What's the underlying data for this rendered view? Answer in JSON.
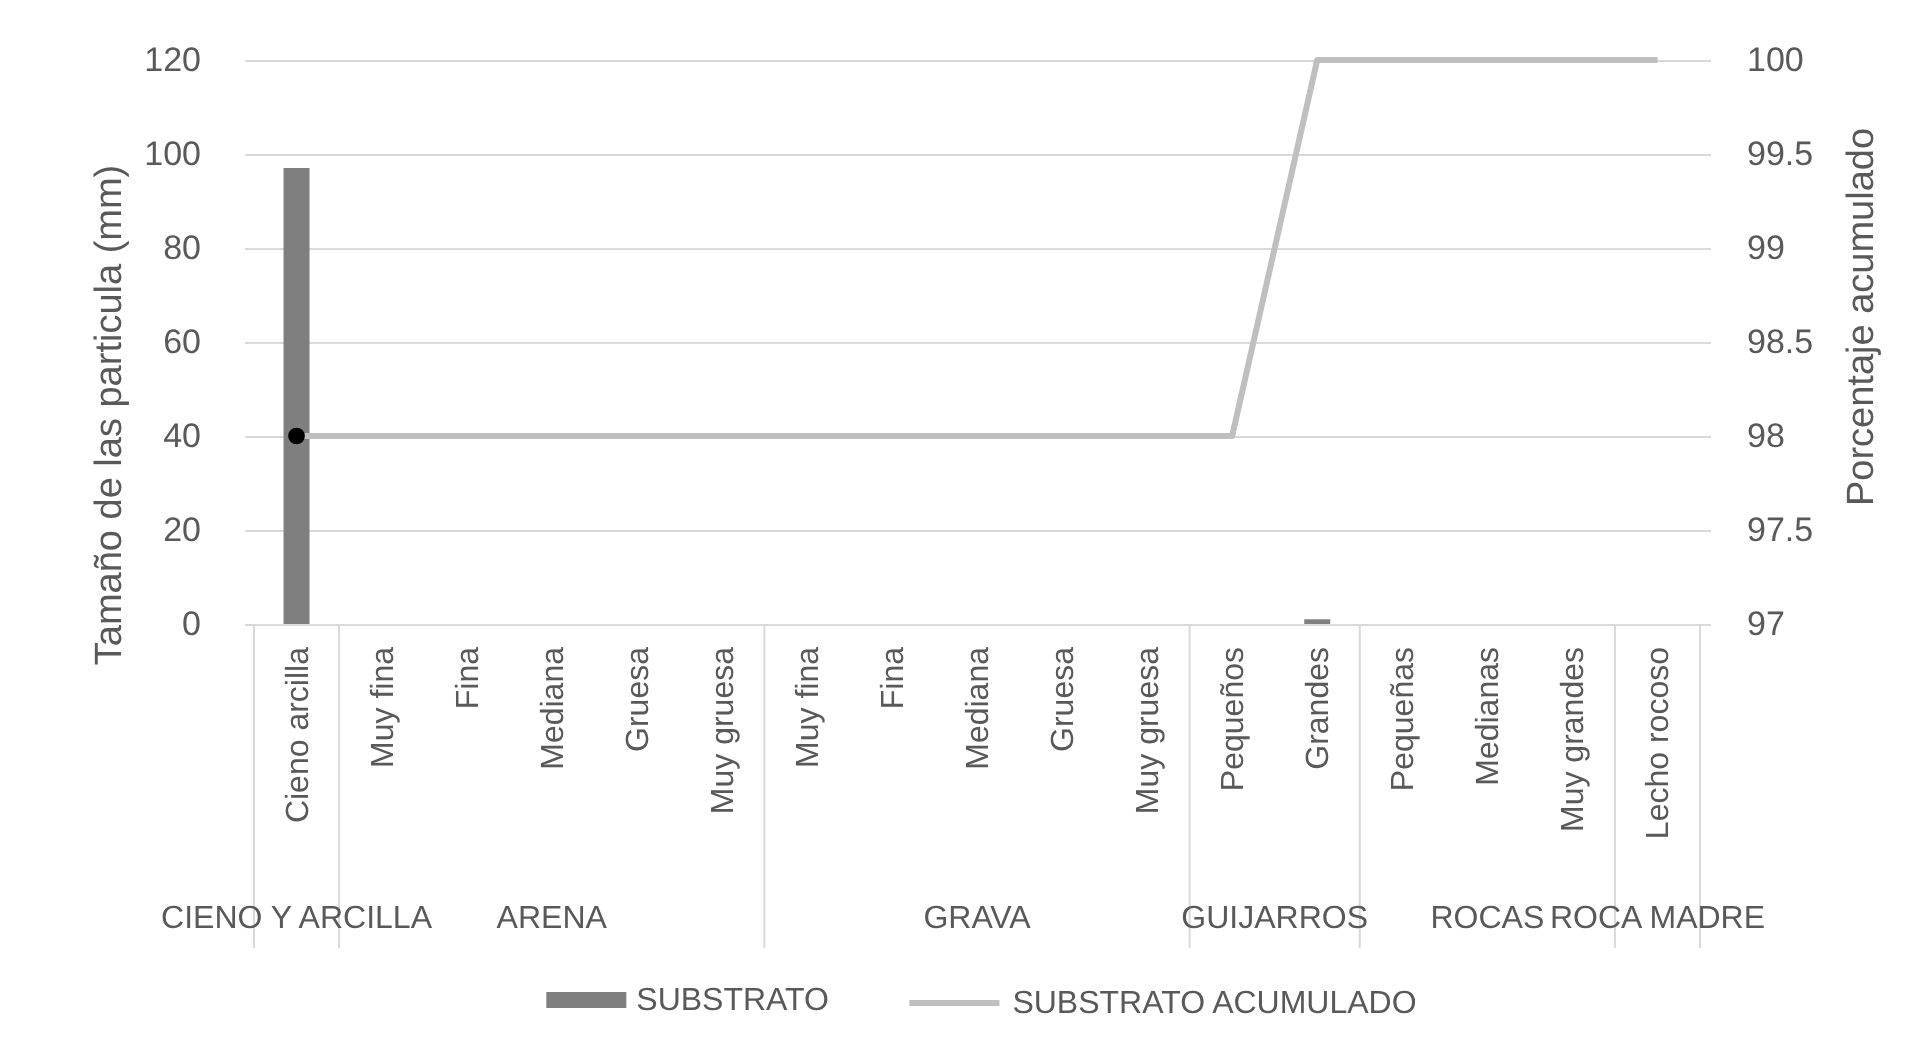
{
  "chart_data": {
    "type": "bar",
    "categories": [
      "Cieno arcilla",
      "Muy fina",
      "Fina",
      "Mediana",
      "Gruesa",
      "Muy gruesa",
      "Muy fina",
      "Fina",
      "Mediana",
      "Gruesa",
      "Muy gruesa",
      "Pequeños",
      "Grandes",
      "Pequeñas",
      "Medianas",
      "Muy grandes",
      "Lecho rocoso"
    ],
    "annotations": [
      "CIENO Y ARCILLA",
      "ARENA",
      "GRAVA",
      "GUIJARROS",
      "ROCAS",
      "ROCA MADRE"
    ],
    "ylabel": "Tamaño de las particula (mm)",
    "y2label": "Porcentaje acumulado",
    "ylim": [
      0,
      120
    ],
    "yticks": [
      0,
      20,
      40,
      60,
      80,
      100,
      120
    ],
    "y2lim": [
      97,
      100
    ],
    "y2ticks": [
      97,
      97.5,
      98,
      98.5,
      99,
      99.5,
      100
    ],
    "grid": "y",
    "legend": "bottom",
    "series": [
      {
        "name": "SUBSTRATO",
        "color": "#7f7f7f",
        "values": [
          97,
          null,
          null,
          null,
          null,
          null,
          null,
          null,
          null,
          null,
          null,
          null,
          1,
          null,
          null,
          null,
          null
        ]
      },
      {
        "name": "SUBSTRATO ACUMULADO",
        "type": "line",
        "axis": "y2",
        "color": "#bfbfbf",
        "values": [
          98,
          98,
          98,
          98,
          98,
          98,
          98,
          98,
          98,
          98,
          98,
          98,
          100,
          100,
          100,
          100,
          100
        ]
      },
      {
        "type": "scatter",
        "axis": "y2",
        "color": "#000000",
        "marker": "circle",
        "values": [
          98,
          null,
          null,
          null,
          null,
          null,
          null,
          null,
          null,
          null,
          null,
          null,
          null,
          null,
          null,
          null,
          null
        ]
      }
    ]
  }
}
